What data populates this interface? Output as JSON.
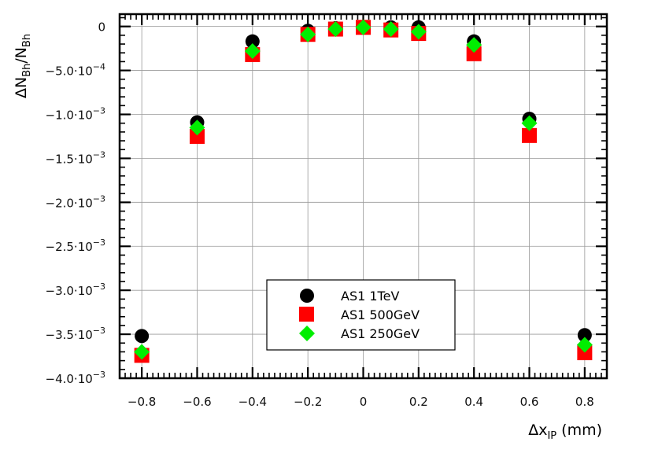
{
  "chart_data": {
    "type": "scatter",
    "xlabel": "Δx",
    "xlabel_sub": "IP",
    "xlabel_unit": "(mm)",
    "ylabel": "ΔN",
    "ylabel_sub": "Bh",
    "ylabel_div": "/N",
    "ylabel_sub2": "Bh",
    "xlim": [
      -0.88,
      0.88
    ],
    "ylim": [
      -0.004,
      0.00014
    ],
    "grid": true,
    "x_ticks": [
      -0.8,
      -0.6,
      -0.4,
      -0.2,
      0,
      0.2,
      0.4,
      0.6,
      0.8
    ],
    "x_tick_labels": [
      "−0.8",
      "−0.6",
      "−0.4",
      "−0.2",
      "0",
      "0.2",
      "0.4",
      "0.6",
      "0.8"
    ],
    "y_ticks": [
      {
        "value": 0,
        "mant": "0",
        "exp": ""
      },
      {
        "value": -0.0005,
        "mant": "−5.0·10",
        "exp": "−4"
      },
      {
        "value": -0.001,
        "mant": "−1.0·10",
        "exp": "−3"
      },
      {
        "value": -0.0015,
        "mant": "−1.5·10",
        "exp": "−3"
      },
      {
        "value": -0.002,
        "mant": "−2.0·10",
        "exp": "−3"
      },
      {
        "value": -0.0025,
        "mant": "−2.5·10",
        "exp": "−3"
      },
      {
        "value": -0.003,
        "mant": "−3.0·10",
        "exp": "−3"
      },
      {
        "value": -0.0035,
        "mant": "−3.5·10",
        "exp": "−3"
      },
      {
        "value": -0.004,
        "mant": "−4.0·10",
        "exp": "−3"
      }
    ],
    "legend_position": "lower-center",
    "series": [
      {
        "name": "AS1 1TeV",
        "marker": "circle",
        "color": "#000000",
        "x": [
          -0.8,
          -0.6,
          -0.4,
          -0.2,
          -0.1,
          0,
          0.1,
          0.2,
          0.4,
          0.6,
          0.8
        ],
        "y": [
          -0.00352,
          -0.00109,
          -0.00017,
          -5e-05,
          -2e-05,
          -1e-05,
          -1e-05,
          -1e-05,
          -0.00017,
          -0.00105,
          -0.00351
        ]
      },
      {
        "name": "AS1 500GeV",
        "marker": "square",
        "color": "#ff0000",
        "x": [
          -0.8,
          -0.6,
          -0.4,
          -0.2,
          -0.1,
          0,
          0.1,
          0.2,
          0.4,
          0.6,
          0.8
        ],
        "y": [
          -0.00374,
          -0.00125,
          -0.00032,
          -9e-05,
          -3e-05,
          -1e-05,
          -4e-05,
          -8e-05,
          -0.00031,
          -0.00124,
          -0.00371
        ]
      },
      {
        "name": "AS1 250GeV",
        "marker": "diamond",
        "color": "#00ee00",
        "x": [
          -0.8,
          -0.6,
          -0.4,
          -0.2,
          -0.1,
          0,
          0.1,
          0.2,
          0.4,
          0.6,
          0.8
        ],
        "y": [
          -0.0037,
          -0.00115,
          -0.00028,
          -9e-05,
          -3e-05,
          -1e-05,
          -3e-05,
          -6e-05,
          -0.00021,
          -0.0011,
          -0.00362
        ]
      }
    ]
  }
}
